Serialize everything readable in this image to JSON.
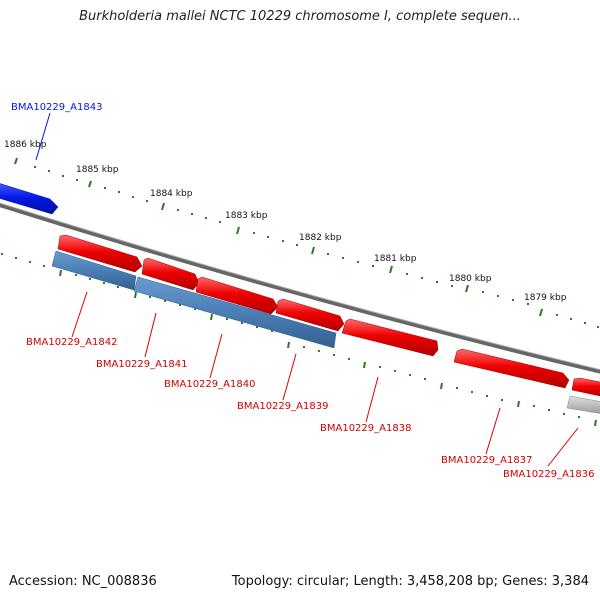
{
  "title": "Burkholderia mallei NCTC 10229 chromosome I, complete sequen...",
  "footer": {
    "accession": "Accession: NC_008836",
    "summary": "Topology: circular; Length: 3,458,208 bp; Genes: 3,384"
  },
  "colors": {
    "forward_gene": "#e10000",
    "reverse_gene": "#4b7fb5",
    "highlight_gene": "#0018e6",
    "pseudo_gene": "#bdbdbd",
    "backbone": "#777777",
    "ruler": "#2a7a1e"
  },
  "ruler": {
    "labels": [
      "1886 kbp",
      "1885 kbp",
      "1884 kbp",
      "1883 kbp",
      "1882 kbp",
      "1881 kbp",
      "1880 kbp",
      "1879 kbp"
    ]
  },
  "genes": [
    {
      "name": "BMA10229_A1843",
      "strand": "forward",
      "color": "blue"
    },
    {
      "name": "BMA10229_A1842",
      "strand": "forward",
      "color": "red"
    },
    {
      "name": "BMA10229_A1841",
      "strand": "forward",
      "color": "red"
    },
    {
      "name": "BMA10229_A1840",
      "strand": "forward",
      "color": "red"
    },
    {
      "name": "BMA10229_A1839",
      "strand": "forward",
      "color": "red"
    },
    {
      "name": "BMA10229_A1838",
      "strand": "forward",
      "color": "red"
    },
    {
      "name": "BMA10229_A1837",
      "strand": "forward",
      "color": "red"
    },
    {
      "name": "BMA10229_A1836",
      "strand": "forward",
      "color": "red"
    },
    {
      "name": "",
      "strand": "reverse",
      "color": "steelblue"
    },
    {
      "name": "",
      "strand": "reverse",
      "color": "steelblue"
    },
    {
      "name": "",
      "strand": "reverse",
      "color": "gray"
    }
  ]
}
